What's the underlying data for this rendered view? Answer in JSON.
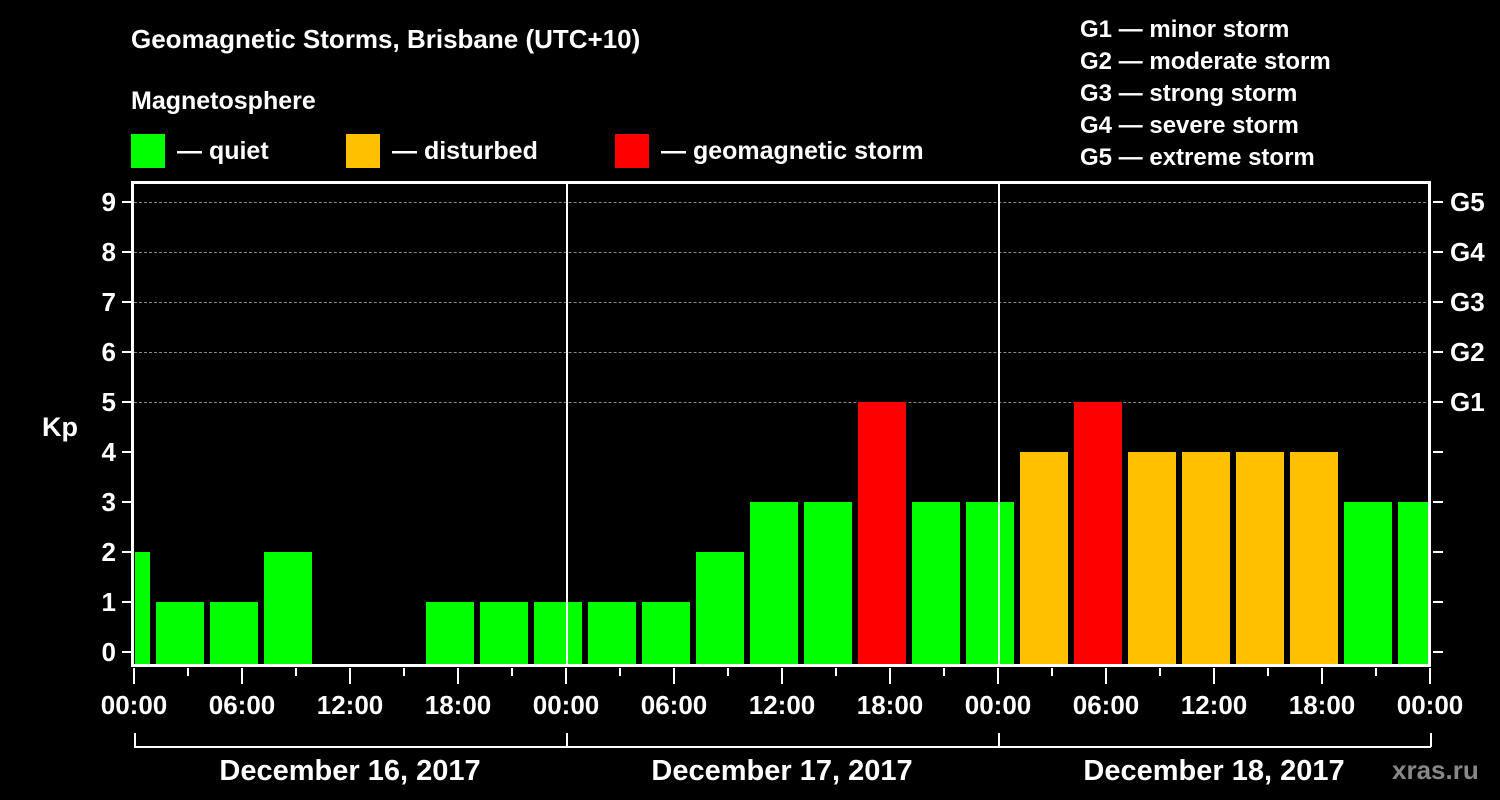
{
  "title": "Geomagnetic Storms, Brisbane (UTC+10)",
  "subtitle": "Magnetosphere",
  "legend": [
    {
      "label": "— quiet",
      "color": "#00ff00"
    },
    {
      "label": "— disturbed",
      "color": "#ffc000"
    },
    {
      "label": "— geomagnetic storm",
      "color": "#ff0000"
    }
  ],
  "g_scale": [
    "G1 — minor storm",
    "G2 — moderate storm",
    "G3 — strong storm",
    "G4 — severe storm",
    "G5 — extreme storm"
  ],
  "y_axis_label": "Kp",
  "y_ticks": [
    "0",
    "1",
    "2",
    "3",
    "4",
    "5",
    "6",
    "7",
    "8",
    "9"
  ],
  "g_ticks": [
    "G1",
    "G2",
    "G3",
    "G4",
    "G5"
  ],
  "x_ticks": [
    "00:00",
    "06:00",
    "12:00",
    "18:00",
    "00:00",
    "06:00",
    "12:00",
    "18:00",
    "00:00",
    "06:00",
    "12:00",
    "18:00",
    "00:00"
  ],
  "days": [
    "December 16, 2017",
    "December 17, 2017",
    "December 18, 2017"
  ],
  "watermark": "xras.ru",
  "colors": {
    "quiet": "#00ff00",
    "disturbed": "#ffc000",
    "storm": "#ff0000",
    "grid": "#888888"
  },
  "chart_data": {
    "type": "bar",
    "title": "Geomagnetic Storms, Brisbane (UTC+10)",
    "xlabel": "",
    "ylabel": "Kp",
    "ylim": [
      0,
      9
    ],
    "grid": "dashed horizontal at Kp 5–9",
    "categories": [
      "Dec16 ~00:00 (partial)",
      "Dec16 01:00",
      "Dec16 04:00",
      "Dec16 07:00",
      "Dec16 10:00",
      "Dec16 13:00",
      "Dec16 16:00",
      "Dec16 19:00",
      "Dec16 22:00",
      "Dec17 01:00",
      "Dec17 04:00",
      "Dec17 07:00",
      "Dec17 10:00",
      "Dec17 13:00",
      "Dec17 16:00",
      "Dec17 19:00",
      "Dec17 22:00",
      "Dec18 01:00",
      "Dec18 04:00",
      "Dec18 07:00",
      "Dec18 10:00",
      "Dec18 13:00",
      "Dec18 16:00",
      "Dec18 19:00",
      "Dec18 22:00 (partial)"
    ],
    "values": [
      2,
      1,
      1,
      2,
      0,
      0,
      1,
      1,
      1,
      1,
      1,
      2,
      3,
      3,
      5,
      3,
      3,
      4,
      5,
      4,
      4,
      4,
      4,
      3,
      3
    ],
    "status": [
      "quiet",
      "quiet",
      "quiet",
      "quiet",
      "quiet",
      "quiet",
      "quiet",
      "quiet",
      "quiet",
      "quiet",
      "quiet",
      "quiet",
      "quiet",
      "quiet",
      "storm",
      "quiet",
      "quiet",
      "disturbed",
      "storm",
      "disturbed",
      "disturbed",
      "disturbed",
      "disturbed",
      "quiet",
      "quiet"
    ],
    "right_axis": {
      "G1": 5,
      "G2": 6,
      "G3": 7,
      "G4": 8,
      "G5": 9
    },
    "legend": [
      "quiet",
      "disturbed",
      "geomagnetic storm"
    ]
  }
}
